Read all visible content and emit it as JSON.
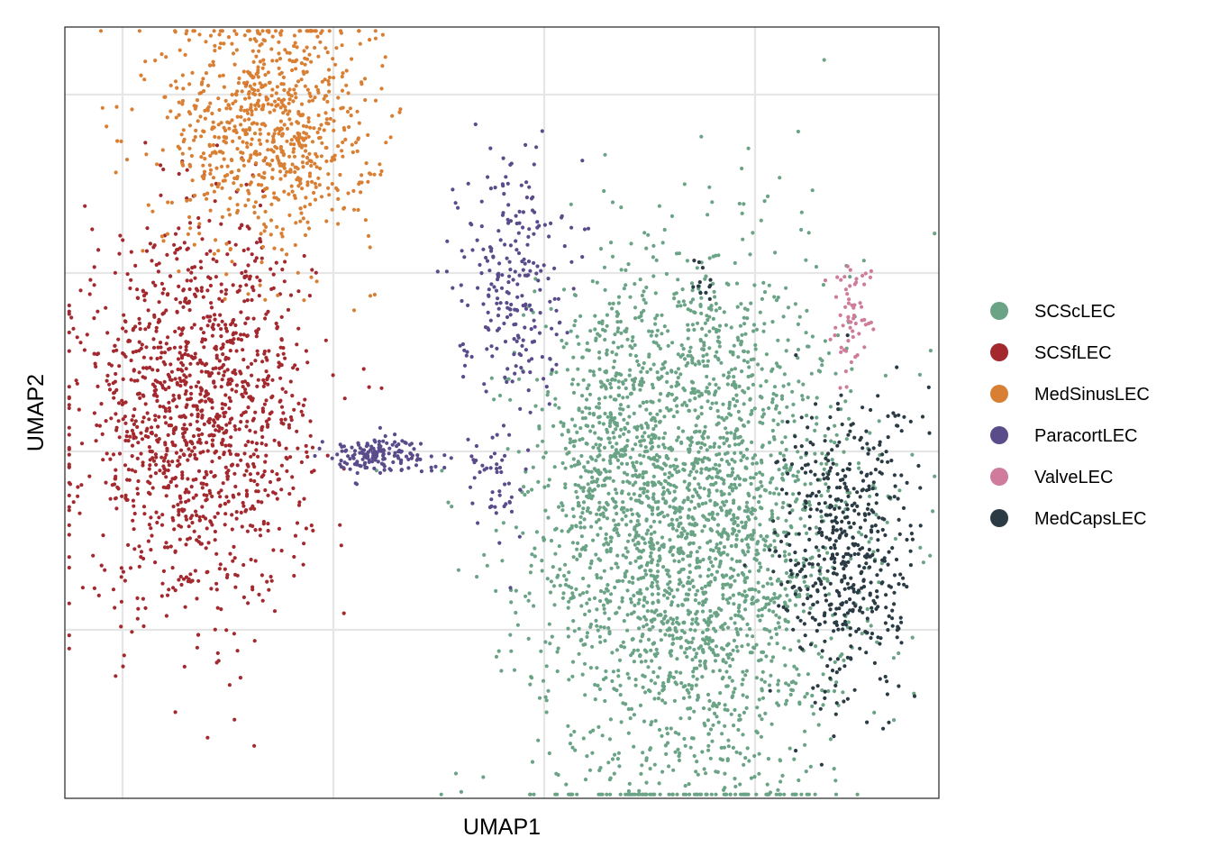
{
  "chart_data": {
    "type": "scatter",
    "xlabel": "UMAP1",
    "ylabel": "UMAP2",
    "xlim": [
      0,
      100
    ],
    "ylim": [
      0,
      100
    ],
    "grid": true,
    "tick_labels_shown": false,
    "legend_placement": "right",
    "series": [
      {
        "name": "SCScLEC",
        "color": "#6aa385",
        "clusters": [
          {
            "cx": 72.0,
            "cy": 34.0,
            "sx": 9.0,
            "sy": 18.0,
            "n": 2600
          },
          {
            "cx": 63.0,
            "cy": 48.0,
            "sx": 4.0,
            "sy": 8.0,
            "n": 300
          },
          {
            "cx": 73.0,
            "cy": 64.0,
            "sx": 1.0,
            "sy": 4.0,
            "n": 25
          }
        ]
      },
      {
        "name": "SCSfLEC",
        "color": "#a3292f",
        "clusters": [
          {
            "cx": 15.0,
            "cy": 49.0,
            "sx": 6.5,
            "sy": 12.0,
            "n": 1300
          },
          {
            "cx": 21.0,
            "cy": 68.0,
            "sx": 2.0,
            "sy": 8.0,
            "n": 40
          }
        ]
      },
      {
        "name": "MedSinusLEC",
        "color": "#d97f34",
        "clusters": [
          {
            "cx": 23.5,
            "cy": 87.0,
            "sx": 6.0,
            "sy": 8.0,
            "n": 820
          }
        ]
      },
      {
        "name": "ParacortLEC",
        "color": "#5a4b8b",
        "clusters": [
          {
            "cx": 51.0,
            "cy": 68.0,
            "sx": 3.0,
            "sy": 8.0,
            "n": 240
          },
          {
            "cx": 35.5,
            "cy": 44.5,
            "sx": 3.0,
            "sy": 1.2,
            "n": 150
          },
          {
            "cx": 49.0,
            "cy": 41.0,
            "sx": 2.0,
            "sy": 4.0,
            "n": 50
          }
        ]
      },
      {
        "name": "ValveLEC",
        "color": "#cf7c9c",
        "clusters": [
          {
            "cx": 90.0,
            "cy": 63.0,
            "sx": 1.2,
            "sy": 3.5,
            "n": 60
          }
        ]
      },
      {
        "name": "MedCapsLEC",
        "color": "#2b3b44",
        "clusters": [
          {
            "cx": 89.5,
            "cy": 32.0,
            "sx": 4.0,
            "sy": 10.0,
            "n": 520
          },
          {
            "cx": 72.5,
            "cy": 67.0,
            "sx": 1.0,
            "sy": 1.5,
            "n": 12
          }
        ]
      }
    ]
  }
}
